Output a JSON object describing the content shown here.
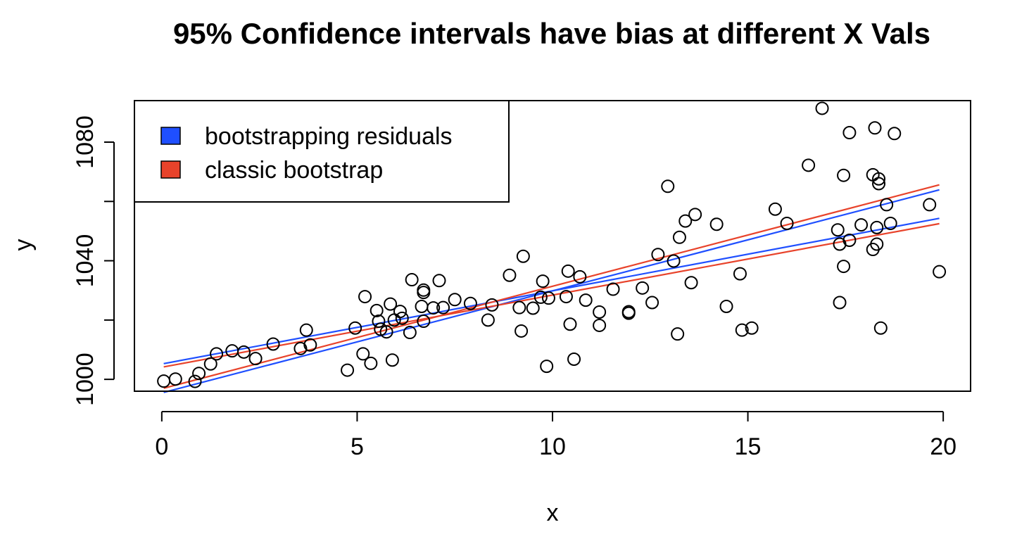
{
  "chart_data": {
    "type": "scatter",
    "title": "95% Confidence intervals have bias at different X Vals",
    "xlabel": "x",
    "ylabel": "y",
    "xlim": [
      -0.7,
      20.7
    ],
    "ylim": [
      996,
      1094
    ],
    "xticks": [
      0,
      5,
      10,
      15,
      20
    ],
    "yticks": [
      1000,
      1020,
      1040,
      1060,
      1080
    ],
    "ytick_labels": [
      "1000",
      "",
      "1040",
      "",
      "1080"
    ],
    "xtick_labels": [
      "0",
      "5",
      "10",
      "15",
      "20"
    ],
    "legend": {
      "position": "top-left",
      "items": [
        {
          "label": "bootstrapping residuals",
          "color": "#1f4fff"
        },
        {
          "label": "classic bootstrap",
          "color": "#e8432b"
        }
      ]
    },
    "series": [
      {
        "name": "points",
        "points": [
          [
            0.05,
            999.4
          ],
          [
            0.35,
            1000.1
          ],
          [
            0.85,
            999.3
          ],
          [
            0.95,
            1002.0
          ],
          [
            1.25,
            1005.2
          ],
          [
            1.4,
            1008.6
          ],
          [
            1.8,
            1009.6
          ],
          [
            2.1,
            1009.2
          ],
          [
            2.4,
            1007.0
          ],
          [
            2.85,
            1011.9
          ],
          [
            3.55,
            1010.4
          ],
          [
            3.7,
            1016.6
          ],
          [
            3.8,
            1011.6
          ],
          [
            4.75,
            1003.1
          ],
          [
            4.95,
            1017.3
          ],
          [
            5.15,
            1008.6
          ],
          [
            5.2,
            1027.9
          ],
          [
            5.35,
            1005.4
          ],
          [
            5.5,
            1023.2
          ],
          [
            5.55,
            1019.6
          ],
          [
            5.6,
            1016.9
          ],
          [
            5.75,
            1016.0
          ],
          [
            5.85,
            1025.4
          ],
          [
            5.9,
            1006.5
          ],
          [
            5.95,
            1020.0
          ],
          [
            6.1,
            1022.9
          ],
          [
            6.15,
            1020.6
          ],
          [
            6.35,
            1015.8
          ],
          [
            6.4,
            1033.6
          ],
          [
            6.65,
            1024.6
          ],
          [
            6.7,
            1019.6
          ],
          [
            6.7,
            1030.1
          ],
          [
            6.7,
            1029.3
          ],
          [
            6.95,
            1024.1
          ],
          [
            7.1,
            1033.3
          ],
          [
            7.2,
            1024.2
          ],
          [
            7.5,
            1026.9
          ],
          [
            7.9,
            1025.6
          ],
          [
            8.35,
            1020.0
          ],
          [
            8.45,
            1025.1
          ],
          [
            8.9,
            1035.1
          ],
          [
            9.15,
            1024.2
          ],
          [
            9.2,
            1016.3
          ],
          [
            9.25,
            1041.5
          ],
          [
            9.5,
            1024.0
          ],
          [
            9.7,
            1027.7
          ],
          [
            9.75,
            1033.1
          ],
          [
            9.85,
            1004.4
          ],
          [
            9.9,
            1027.4
          ],
          [
            10.35,
            1027.9
          ],
          [
            10.4,
            1036.5
          ],
          [
            10.45,
            1018.6
          ],
          [
            10.55,
            1006.8
          ],
          [
            10.7,
            1034.6
          ],
          [
            10.85,
            1026.7
          ],
          [
            11.2,
            1022.7
          ],
          [
            11.2,
            1018.2
          ],
          [
            11.55,
            1030.4
          ],
          [
            11.95,
            1022.3
          ],
          [
            11.95,
            1022.8
          ],
          [
            12.3,
            1030.8
          ],
          [
            12.55,
            1025.9
          ],
          [
            12.7,
            1042.1
          ],
          [
            12.95,
            1065.1
          ],
          [
            13.1,
            1039.9
          ],
          [
            13.2,
            1015.3
          ],
          [
            13.25,
            1047.9
          ],
          [
            13.4,
            1053.4
          ],
          [
            13.55,
            1032.6
          ],
          [
            13.65,
            1055.6
          ],
          [
            14.2,
            1052.3
          ],
          [
            14.45,
            1024.6
          ],
          [
            14.8,
            1035.6
          ],
          [
            14.85,
            1016.6
          ],
          [
            15.1,
            1017.3
          ],
          [
            15.7,
            1057.4
          ],
          [
            16.0,
            1052.6
          ],
          [
            16.55,
            1072.2
          ],
          [
            16.9,
            1091.4
          ],
          [
            17.3,
            1050.4
          ],
          [
            17.35,
            1045.6
          ],
          [
            17.35,
            1025.9
          ],
          [
            17.45,
            1068.8
          ],
          [
            17.45,
            1038.1
          ],
          [
            17.6,
            1083.2
          ],
          [
            17.6,
            1046.9
          ],
          [
            17.9,
            1052.1
          ],
          [
            18.2,
            1043.8
          ],
          [
            18.2,
            1069.0
          ],
          [
            18.25,
            1084.8
          ],
          [
            18.3,
            1045.6
          ],
          [
            18.3,
            1051.2
          ],
          [
            18.35,
            1066.0
          ],
          [
            18.35,
            1067.6
          ],
          [
            18.4,
            1017.3
          ],
          [
            18.55,
            1058.9
          ],
          [
            18.65,
            1052.6
          ],
          [
            18.75,
            1082.9
          ],
          [
            19.65,
            1058.9
          ],
          [
            19.9,
            1036.3
          ]
        ]
      }
    ],
    "ci_lines": [
      {
        "name": "bootstrapping residuals",
        "color": "#1f4fff",
        "points": [
          [
            0.05,
            1005.3
          ],
          [
            19.9,
            1054.3
          ]
        ]
      },
      {
        "name": "bootstrapping residuals",
        "color": "#1f4fff",
        "points": [
          [
            0.05,
            995.6
          ],
          [
            19.9,
            1063.9
          ]
        ]
      },
      {
        "name": "classic bootstrap",
        "color": "#e8432b",
        "points": [
          [
            0.05,
            1004.2
          ],
          [
            19.9,
            1052.5
          ]
        ]
      },
      {
        "name": "classic bootstrap",
        "color": "#e8432b",
        "points": [
          [
            0.05,
            997.0
          ],
          [
            19.9,
            1065.6
          ]
        ]
      }
    ]
  }
}
